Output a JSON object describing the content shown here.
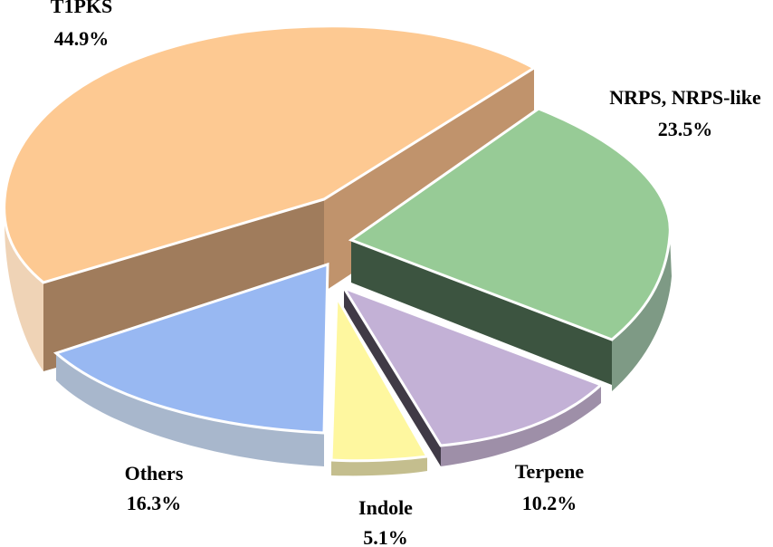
{
  "chart_data": {
    "type": "pie",
    "style": "3d-exploded",
    "title": "",
    "slices": [
      {
        "label": "T1PKS",
        "value": 44.9,
        "value_label": "44.9%",
        "color": "#FDC992"
      },
      {
        "label": "NRPS, NRPS-like",
        "value": 23.5,
        "value_label": "23.5%",
        "color": "#97CB96"
      },
      {
        "label": "Terpene",
        "value": 10.2,
        "value_label": "10.2%",
        "color": "#C3B1D6"
      },
      {
        "label": "Indole",
        "value": 5.1,
        "value_label": "5.1%",
        "color": "#FEF79F"
      },
      {
        "label": "Others",
        "value": 16.3,
        "value_label": "16.3%",
        "color": "#98B8F2"
      }
    ],
    "legend": "none"
  }
}
